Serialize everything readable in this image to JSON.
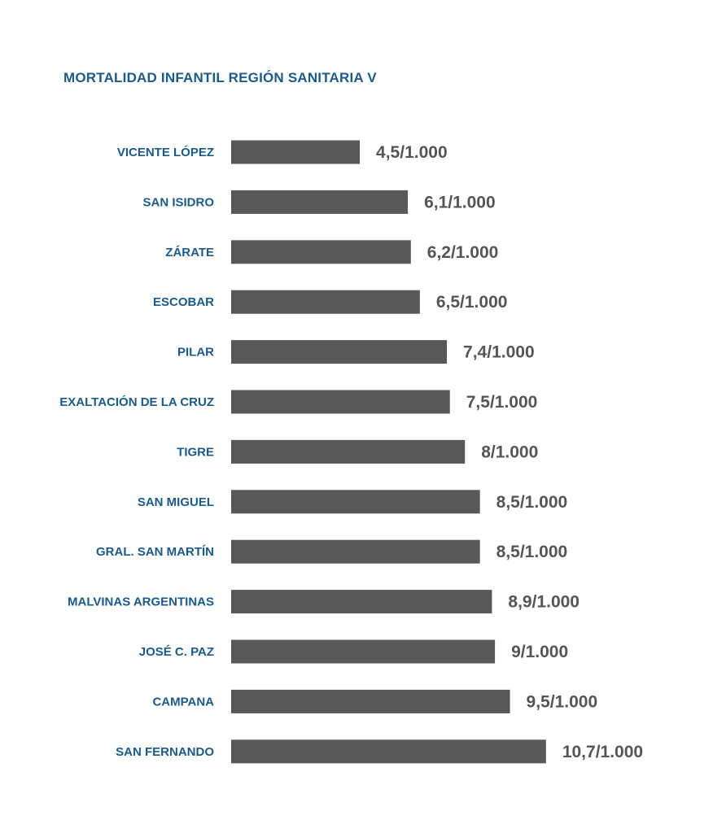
{
  "chart_data": {
    "type": "bar",
    "orientation": "horizontal",
    "title": "MORTALIDAD INFANTIL REGIÓN SANITARIA V",
    "xlabel": "",
    "ylabel": "",
    "unit_suffix": "/1.000",
    "grid": false,
    "categories": [
      "VICENTE LÓPEZ",
      "SAN ISIDRO",
      "ZÁRATE",
      "ESCOBAR",
      "PILAR",
      "EXALTACIÓN DE LA CRUZ",
      "TIGRE",
      "SAN MIGUEL",
      "GRAL. SAN MARTÍN",
      "MALVINAS ARGENTINAS",
      "JOSÉ C. PAZ",
      "CAMPANA",
      "SAN FERNANDO"
    ],
    "values": [
      4.5,
      6.1,
      6.2,
      6.5,
      7.4,
      7.5,
      8,
      8.5,
      8.5,
      8.9,
      9,
      9.5,
      10.7
    ],
    "data_labels": [
      "4,5/1.000",
      "6,1/1.000",
      "6,2/1.000",
      "6,5/1.000",
      "7,4/1.000",
      "7,5/1.000",
      "8/1.000",
      "8,5/1.000",
      "8,5/1.000",
      "8,9/1.000",
      "9/1.000",
      "9,5/1.000",
      "10,7/1.000"
    ],
    "colors": {
      "title": "#1b5a89",
      "category_label": "#1b5a89",
      "bar": "#585858",
      "value_label": "#555555"
    }
  }
}
